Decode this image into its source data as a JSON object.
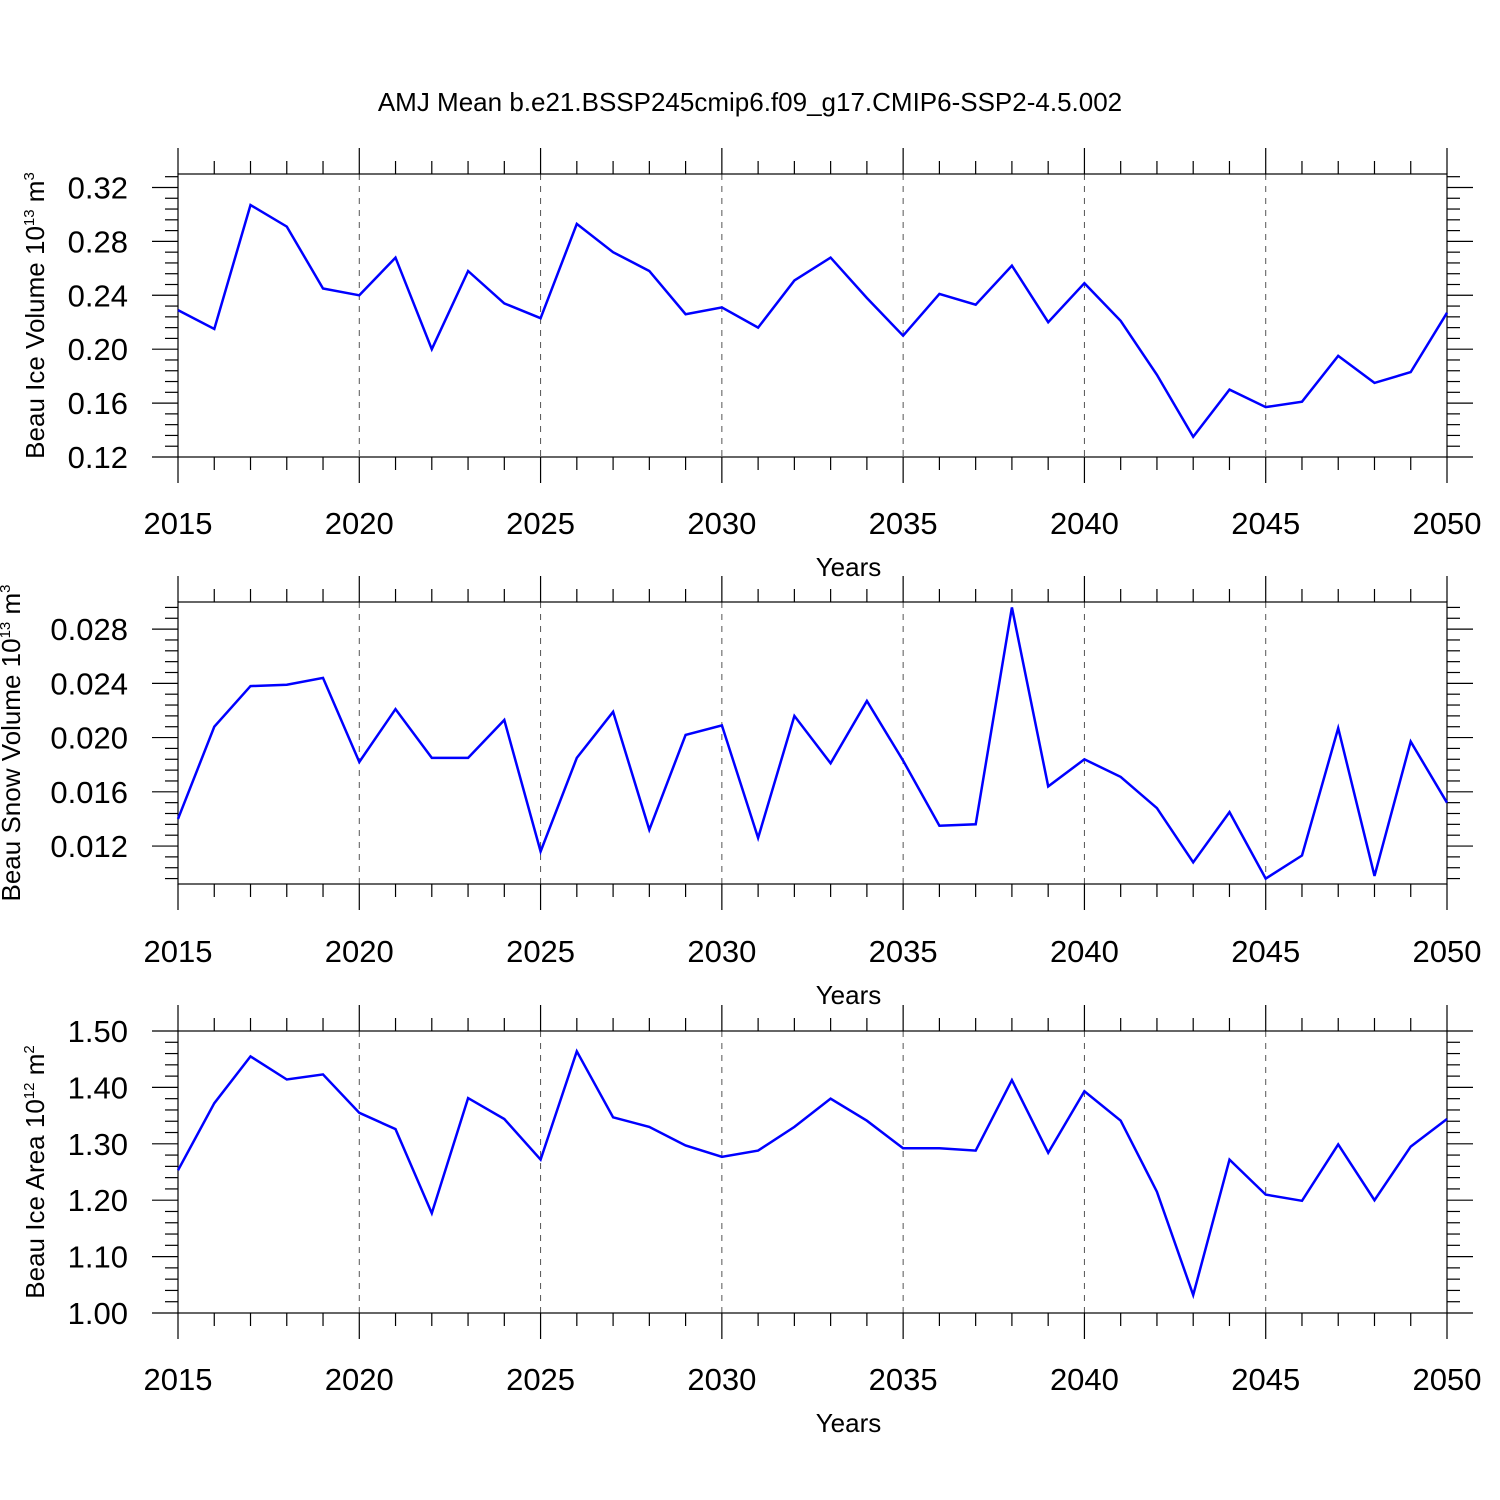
{
  "title": "AMJ Mean b.e21.BSSP245cmip6.f09_g17.CMIP6-SSP2-4.5.002",
  "colors": {
    "line": "#0000ff"
  },
  "chart_data": [
    {
      "type": "line",
      "title": "AMJ Mean b.e21.BSSP245cmip6.f09_g17.CMIP6-SSP2-4.5.002",
      "xlabel": "Years",
      "ylabel": {
        "text": "Beau Ice Volume 10",
        "sup": "13",
        "unit": " m",
        "unitSup": "3"
      },
      "xlim": [
        2015,
        2050
      ],
      "ylim": [
        0.12,
        0.33
      ],
      "xticks": [
        2015,
        2020,
        2025,
        2030,
        2035,
        2040,
        2045,
        2050
      ],
      "xtick_labels": [
        "2015",
        "2020",
        "2025",
        "2030",
        "2035",
        "2040",
        "2045",
        "2050"
      ],
      "yticks": [
        0.12,
        0.16,
        0.2,
        0.24,
        0.28,
        0.32
      ],
      "ytick_labels": [
        "0.12",
        "0.16",
        "0.20",
        "0.24",
        "0.28",
        "0.32"
      ],
      "yminor_step": 0.008,
      "grid": "x-dashed",
      "series": [
        {
          "name": "Beau Ice Volume",
          "x": [
            2015,
            2016,
            2017,
            2018,
            2019,
            2020,
            2021,
            2022,
            2023,
            2024,
            2025,
            2026,
            2027,
            2028,
            2029,
            2030,
            2031,
            2032,
            2033,
            2034,
            2035,
            2036,
            2037,
            2038,
            2039,
            2040,
            2041,
            2042,
            2043,
            2044,
            2045,
            2046,
            2047,
            2048,
            2049,
            2050
          ],
          "values": [
            0.229,
            0.215,
            0.307,
            0.291,
            0.245,
            0.24,
            0.268,
            0.2,
            0.258,
            0.234,
            0.223,
            0.293,
            0.272,
            0.258,
            0.226,
            0.231,
            0.216,
            0.251,
            0.268,
            0.238,
            0.21,
            0.241,
            0.233,
            0.262,
            0.22,
            0.249,
            0.221,
            0.181,
            0.135,
            0.17,
            0.157,
            0.161,
            0.195,
            0.175,
            0.183,
            0.227
          ]
        }
      ]
    },
    {
      "type": "line",
      "xlabel": "Years",
      "ylabel": {
        "text": "Beau Snow Volume 10",
        "sup": "13",
        "unit": " m",
        "unitSup": "3"
      },
      "xlim": [
        2015,
        2050
      ],
      "ylim": [
        0.0092,
        0.03
      ],
      "xticks": [
        2015,
        2020,
        2025,
        2030,
        2035,
        2040,
        2045,
        2050
      ],
      "xtick_labels": [
        "2015",
        "2020",
        "2025",
        "2030",
        "2035",
        "2040",
        "2045",
        "2050"
      ],
      "yticks": [
        0.012,
        0.016,
        0.02,
        0.024,
        0.028
      ],
      "ytick_labels": [
        "0.012",
        "0.016",
        "0.020",
        "0.024",
        "0.028"
      ],
      "yminor_step": 0.0008,
      "grid": "x-dashed",
      "series": [
        {
          "name": "Beau Snow Volume",
          "x": [
            2015,
            2016,
            2017,
            2018,
            2019,
            2020,
            2021,
            2022,
            2023,
            2024,
            2025,
            2026,
            2027,
            2028,
            2029,
            2030,
            2031,
            2032,
            2033,
            2034,
            2035,
            2036,
            2037,
            2038,
            2039,
            2040,
            2041,
            2042,
            2043,
            2044,
            2045,
            2046,
            2047,
            2048,
            2049,
            2050
          ],
          "values": [
            0.014,
            0.0208,
            0.0238,
            0.0239,
            0.0244,
            0.0182,
            0.0221,
            0.0185,
            0.0185,
            0.0213,
            0.0116,
            0.0185,
            0.0219,
            0.0132,
            0.0202,
            0.0209,
            0.0126,
            0.0216,
            0.0181,
            0.0227,
            0.0183,
            0.0135,
            0.0136,
            0.0296,
            0.0164,
            0.0184,
            0.0171,
            0.0148,
            0.0108,
            0.0145,
            0.0096,
            0.0113,
            0.0207,
            0.0098,
            0.0197,
            0.0152
          ]
        }
      ]
    },
    {
      "type": "line",
      "xlabel": "Years",
      "ylabel": {
        "text": "Beau Ice Area 10",
        "sup": "12",
        "unit": " m",
        "unitSup": "2"
      },
      "xlim": [
        2015,
        2050
      ],
      "ylim": [
        1.0,
        1.5
      ],
      "xticks": [
        2015,
        2020,
        2025,
        2030,
        2035,
        2040,
        2045,
        2050
      ],
      "xtick_labels": [
        "2015",
        "2020",
        "2025",
        "2030",
        "2035",
        "2040",
        "2045",
        "2050"
      ],
      "yticks": [
        1.0,
        1.1,
        1.2,
        1.3,
        1.4,
        1.5
      ],
      "ytick_labels": [
        "1.00",
        "1.10",
        "1.20",
        "1.30",
        "1.40",
        "1.50"
      ],
      "yminor_step": 0.02,
      "grid": "x-dashed",
      "series": [
        {
          "name": "Beau Ice Area",
          "x": [
            2015,
            2016,
            2017,
            2018,
            2019,
            2020,
            2021,
            2022,
            2023,
            2024,
            2025,
            2026,
            2027,
            2028,
            2029,
            2030,
            2031,
            2032,
            2033,
            2034,
            2035,
            2036,
            2037,
            2038,
            2039,
            2040,
            2041,
            2042,
            2043,
            2044,
            2045,
            2046,
            2047,
            2048,
            2049,
            2050
          ],
          "values": [
            1.253,
            1.372,
            1.455,
            1.414,
            1.423,
            1.355,
            1.326,
            1.177,
            1.381,
            1.344,
            1.272,
            1.464,
            1.347,
            1.33,
            1.297,
            1.277,
            1.288,
            1.33,
            1.38,
            1.341,
            1.292,
            1.292,
            1.288,
            1.413,
            1.284,
            1.393,
            1.341,
            1.215,
            1.032,
            1.272,
            1.21,
            1.199,
            1.299,
            1.2,
            1.295,
            1.344
          ]
        }
      ]
    }
  ]
}
